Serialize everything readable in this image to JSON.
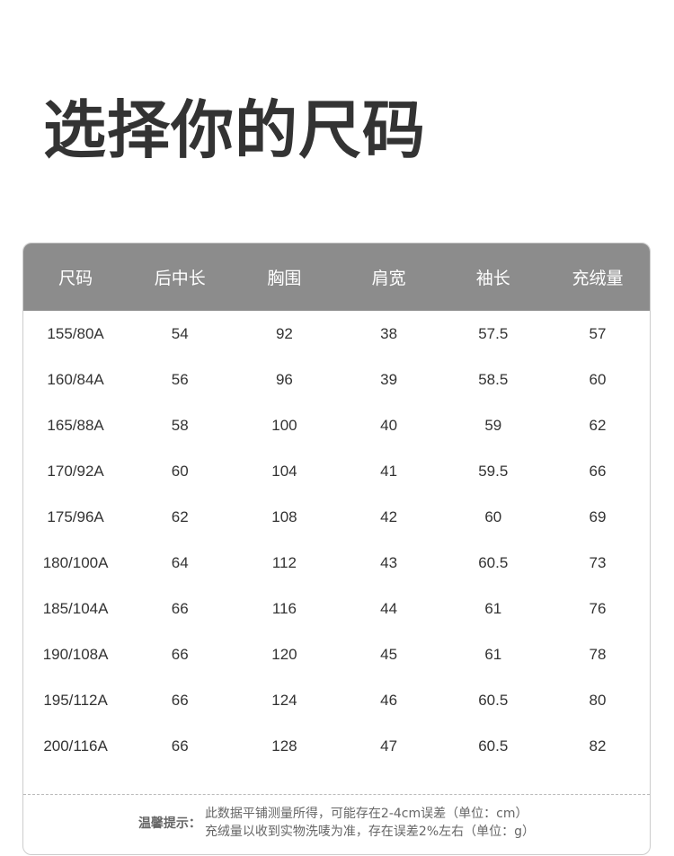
{
  "title": "选择你的尺码",
  "table": {
    "headers": [
      "尺码",
      "后中长",
      "胸围",
      "肩宽",
      "袖长",
      "充绒量"
    ],
    "rows": [
      [
        "155/80A",
        "54",
        "92",
        "38",
        "57.5",
        "57"
      ],
      [
        "160/84A",
        "56",
        "96",
        "39",
        "58.5",
        "60"
      ],
      [
        "165/88A",
        "58",
        "100",
        "40",
        "59",
        "62"
      ],
      [
        "170/92A",
        "60",
        "104",
        "41",
        "59.5",
        "66"
      ],
      [
        "175/96A",
        "62",
        "108",
        "42",
        "60",
        "69"
      ],
      [
        "180/100A",
        "64",
        "112",
        "43",
        "60.5",
        "73"
      ],
      [
        "185/104A",
        "66",
        "116",
        "44",
        "61",
        "76"
      ],
      [
        "190/108A",
        "66",
        "120",
        "45",
        "61",
        "78"
      ],
      [
        "195/112A",
        "66",
        "124",
        "46",
        "60.5",
        "80"
      ],
      [
        "200/116A",
        "66",
        "128",
        "47",
        "60.5",
        "82"
      ]
    ]
  },
  "note": {
    "label": "温馨提示：",
    "lines": [
      "此数据平铺测量所得，可能存在2-4cm误差（单位：cm）",
      "充绒量以收到实物洗唛为准，存在误差2%左右（单位：g）"
    ]
  },
  "colors": {
    "header_bg": "#8c8c8c",
    "title": "#333333"
  }
}
